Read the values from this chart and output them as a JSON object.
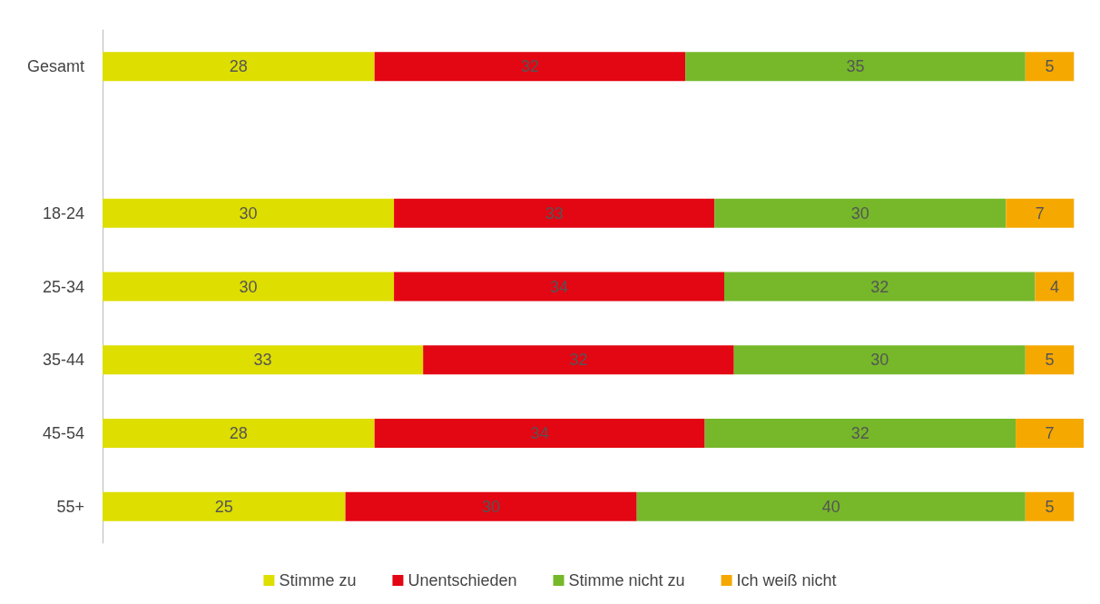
{
  "chart_data": {
    "type": "bar",
    "orientation": "horizontal",
    "stacked": true,
    "data_labels": true,
    "legend": "bottom",
    "grid": false,
    "categories": [
      "Gesamt",
      null,
      "18-24",
      "25-34",
      "35-44",
      "45-54",
      "55+"
    ],
    "series": [
      {
        "name": "Stimme zu",
        "color": "#dede00",
        "values": [
          28,
          null,
          30,
          30,
          33,
          28,
          25
        ]
      },
      {
        "name": "Unentschieden",
        "color": "#e30613",
        "values": [
          32,
          null,
          33,
          34,
          32,
          34,
          30
        ]
      },
      {
        "name": "Stimme nicht zu",
        "color": "#76b82a",
        "values": [
          35,
          null,
          30,
          32,
          30,
          32,
          40
        ]
      },
      {
        "name": "Ich weiß nicht",
        "color": "#f5a800",
        "values": [
          5,
          null,
          7,
          4,
          5,
          7,
          5
        ]
      }
    ]
  }
}
